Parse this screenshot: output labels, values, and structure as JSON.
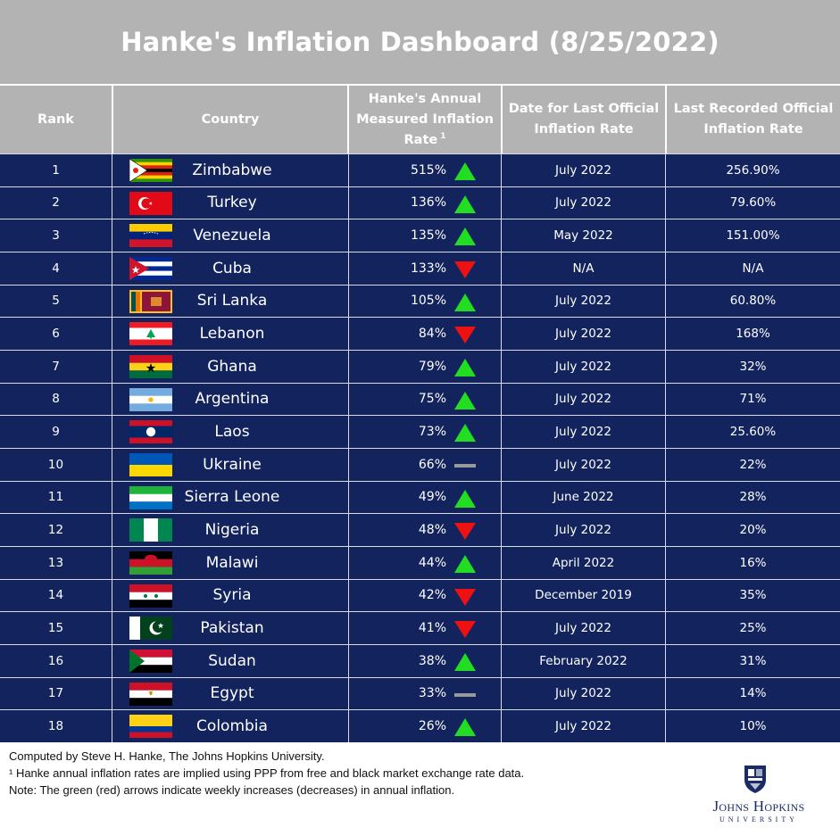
{
  "title": "Hanke's Inflation Dashboard (8/25/2022)",
  "columns": {
    "rank": "Rank",
    "country": "Country",
    "hanke_line1": "Hanke's Annual",
    "hanke_line2": "Measured Inflation",
    "hanke_line3": "Rate",
    "hanke_sup": "1",
    "date_line1": "Date for Last Official",
    "date_line2": "Inflation Rate",
    "official_line1": "Last Recorded Official",
    "official_line2": "Inflation Rate"
  },
  "chart_data": {
    "type": "table",
    "rows": [
      {
        "rank": "1",
        "country": "Zimbabwe",
        "flag": "zimbabwe-flag-icon",
        "hanke_rate": "515%",
        "trend": "up",
        "date": "July 2022",
        "official": "256.90%"
      },
      {
        "rank": "2",
        "country": "Turkey",
        "flag": "turkey-flag-icon",
        "hanke_rate": "136%",
        "trend": "up",
        "date": "July 2022",
        "official": "79.60%"
      },
      {
        "rank": "3",
        "country": "Venezuela",
        "flag": "venezuela-flag-icon",
        "hanke_rate": "135%",
        "trend": "up",
        "date": "May 2022",
        "official": "151.00%"
      },
      {
        "rank": "4",
        "country": "Cuba",
        "flag": "cuba-flag-icon",
        "hanke_rate": "133%",
        "trend": "down",
        "date": "N/A",
        "official": "N/A"
      },
      {
        "rank": "5",
        "country": "Sri Lanka",
        "flag": "sri-lanka-flag-icon",
        "hanke_rate": "105%",
        "trend": "up",
        "date": "July 2022",
        "official": "60.80%"
      },
      {
        "rank": "6",
        "country": "Lebanon",
        "flag": "lebanon-flag-icon",
        "hanke_rate": "84%",
        "trend": "down",
        "date": "July 2022",
        "official": "168%"
      },
      {
        "rank": "7",
        "country": "Ghana",
        "flag": "ghana-flag-icon",
        "hanke_rate": "79%",
        "trend": "up",
        "date": "July 2022",
        "official": "32%"
      },
      {
        "rank": "8",
        "country": "Argentina",
        "flag": "argentina-flag-icon",
        "hanke_rate": "75%",
        "trend": "up",
        "date": "July 2022",
        "official": "71%"
      },
      {
        "rank": "9",
        "country": "Laos",
        "flag": "laos-flag-icon",
        "hanke_rate": "73%",
        "trend": "up",
        "date": "July 2022",
        "official": "25.60%"
      },
      {
        "rank": "10",
        "country": "Ukraine",
        "flag": "ukraine-flag-icon",
        "hanke_rate": "66%",
        "trend": "flat",
        "date": "July 2022",
        "official": "22%"
      },
      {
        "rank": "11",
        "country": "Sierra Leone",
        "flag": "sierra-leone-flag-icon",
        "hanke_rate": "49%",
        "trend": "up",
        "date": "June 2022",
        "official": "28%"
      },
      {
        "rank": "12",
        "country": "Nigeria",
        "flag": "nigeria-flag-icon",
        "hanke_rate": "48%",
        "trend": "down",
        "date": "July 2022",
        "official": "20%"
      },
      {
        "rank": "13",
        "country": "Malawi",
        "flag": "malawi-flag-icon",
        "hanke_rate": "44%",
        "trend": "up",
        "date": "April 2022",
        "official": "16%"
      },
      {
        "rank": "14",
        "country": "Syria",
        "flag": "syria-flag-icon",
        "hanke_rate": "42%",
        "trend": "down",
        "date": "December 2019",
        "official": "35%"
      },
      {
        "rank": "15",
        "country": "Pakistan",
        "flag": "pakistan-flag-icon",
        "hanke_rate": "41%",
        "trend": "down",
        "date": "July 2022",
        "official": "25%"
      },
      {
        "rank": "16",
        "country": "Sudan",
        "flag": "sudan-flag-icon",
        "hanke_rate": "38%",
        "trend": "up",
        "date": "February 2022",
        "official": "31%"
      },
      {
        "rank": "17",
        "country": "Egypt",
        "flag": "egypt-flag-icon",
        "hanke_rate": "33%",
        "trend": "flat",
        "date": "July 2022",
        "official": "14%"
      },
      {
        "rank": "18",
        "country": "Colombia",
        "flag": "colombia-flag-icon",
        "hanke_rate": "26%",
        "trend": "up",
        "date": "July 2022",
        "official": "10%"
      }
    ]
  },
  "colors": {
    "title_bg": "#b3b3b3",
    "row_bg": "#12235e",
    "up_arrow": "#22dd22",
    "down_arrow": "#ee1111",
    "flat_dash": "#999999"
  },
  "footer": {
    "line1": "Computed by Steve H. Hanke, The Johns Hopkins University.",
    "line2": "¹ Hanke annual inflation rates are implied using PPP from free and black market exchange rate data.",
    "line3": "Note: The green (red) arrows indicate weekly increases (decreases) in annual inflation."
  },
  "logo": {
    "name": "Johns Hopkins",
    "sub": "University"
  }
}
